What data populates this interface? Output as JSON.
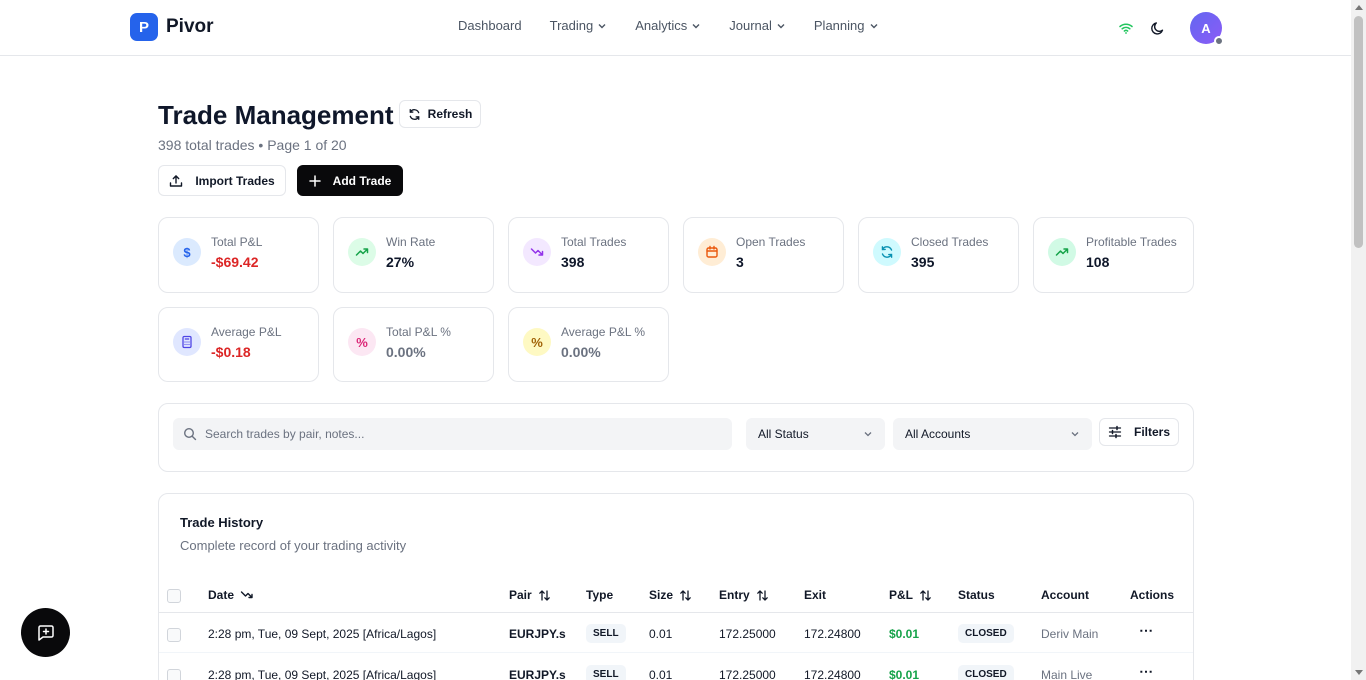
{
  "brand": {
    "mark": "P",
    "name": "Pivor"
  },
  "nav": {
    "items": [
      {
        "label": "Dashboard",
        "dropdown": false
      },
      {
        "label": "Trading",
        "dropdown": true
      },
      {
        "label": "Analytics",
        "dropdown": true
      },
      {
        "label": "Journal",
        "dropdown": true
      },
      {
        "label": "Planning",
        "dropdown": true
      }
    ],
    "avatar_initial": "A"
  },
  "header": {
    "title": "Trade Management",
    "refresh_label": "Refresh",
    "subtitle": "398 total trades • Page 1 of 20",
    "import_label": "Import Trades",
    "add_label": "Add Trade"
  },
  "stats": [
    {
      "label": "Total P&L",
      "value": "-$69.42",
      "icon": "dollar-icon",
      "color": "#2563eb",
      "bg": "#dbeafe"
    },
    {
      "label": "Win Rate",
      "value": "27%",
      "icon": "trending-up-icon",
      "color": "#16a34a",
      "bg": "#dcfce7"
    },
    {
      "label": "Total Trades",
      "value": "398",
      "icon": "trending-down-icon",
      "color": "#9333ea",
      "bg": "#f3e8ff"
    },
    {
      "label": "Open Trades",
      "value": "3",
      "icon": "calendar-icon",
      "color": "#ea580c",
      "bg": "#ffedd5"
    },
    {
      "label": "Closed Trades",
      "value": "395",
      "icon": "refresh-icon",
      "color": "#0891b2",
      "bg": "#cffafe"
    },
    {
      "label": "Profitable Trades",
      "value": "108",
      "icon": "trending-up-icon",
      "color": "#16a34a",
      "bg": "#d1fae5"
    },
    {
      "label": "Average P&L",
      "value": "-$0.18",
      "icon": "calculator-icon",
      "color": "#4f46e5",
      "bg": "#e0e7ff"
    },
    {
      "label": "Total P&L %",
      "value": "0.00%",
      "icon": "percent-icon",
      "color": "#db2777",
      "bg": "#fce7f3"
    },
    {
      "label": "Average P&L %",
      "value": "0.00%",
      "icon": "percent-icon",
      "color": "#a16207",
      "bg": "#fef9c3"
    }
  ],
  "filters": {
    "search_placeholder": "Search trades by pair, notes...",
    "status_value": "All Status",
    "accounts_value": "All Accounts",
    "filters_label": "Filters"
  },
  "history": {
    "title": "Trade History",
    "subtitle": "Complete record of your trading activity",
    "columns": [
      "Date",
      "Pair",
      "Type",
      "Size",
      "Entry",
      "Exit",
      "P&L",
      "Status",
      "Account",
      "Actions"
    ],
    "rows": [
      {
        "date": "2:28 pm, Tue, 09 Sept, 2025 [Africa/Lagos]",
        "pair": "EURJPY.s",
        "type": "SELL",
        "size": "0.01",
        "entry": "172.25000",
        "exit": "172.24800",
        "pnl": "$0.01",
        "status": "CLOSED",
        "account": "Deriv Main"
      },
      {
        "date": "2:28 pm, Tue, 09 Sept, 2025 [Africa/Lagos]",
        "pair": "EURJPY.s",
        "type": "SELL",
        "size": "0.01",
        "entry": "172.25000",
        "exit": "172.24800",
        "pnl": "$0.01",
        "status": "CLOSED",
        "account": "Main Live"
      }
    ]
  },
  "colors": {
    "accent": "#2563eb",
    "negative": "#dc2626",
    "positive": "#16a34a",
    "primary_button": "#09090b"
  }
}
